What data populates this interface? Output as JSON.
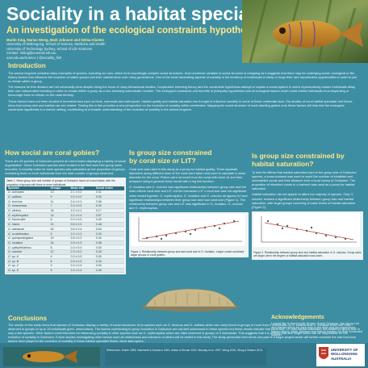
{
  "header": {
    "title": "Sociality in a habitat specialist fish",
    "subtitle": "An investigation of the ecological constraints hypothesis",
    "authors": "Martin King, Marian Wong, Mark Johnson and Selma Klanten",
    "affiliation_1": "University of Wollongong, School of Science, Medicine and Health",
    "affiliation_2": "University of Technology Sydney, School of Life Sciences",
    "contact": "Contact: mking@uowmail.edu.au",
    "links": "uow.edu.au/science | @sociality_fish"
  },
  "introduction": {
    "heading": "Introduction",
    "paragraphs": [
      "The animal kingdom contains many examples of species, including our own, which form surprisingly complex social structures. Such immense variation in social structure is intriguing as it suggests that there may be underlying social, ecological or life-history factors that influence the evolution of stable groups and their maintenance over many generations. One of the most fascinating aspects of sociality is the tendency of individuals to delay or forgo their own reproductive opportunities in order to join or remain within a group.",
      "The reasons for this decision are not universally clear despite being the focus of many behavioural studies. Cooperative breeding theory and the constraints hypothesis attempt to explain a social system in which reproductively mature individuals delay their own independent breeding in order to remain within a group as a non-breeding subordinate member. The ecological constraints and benefits of philopatry hypotheses look at ecological factors which could restrict individuals from dispersing or encourage them to remain on the natal territory.",
      "These factors have not been studied in terrestrial taxa such as birds, mammals and arthropods. Habitat quality and habitat saturation are thought to influence sociality in some of these vertebrate taxa. Our studies of coral habitat specialist reef fishes show that colony size and habitat use are related. Testing this in fish provides a new perspective on the evolution of sociality within vertebrates. Mapping the social structure of coral-dwelling gobies onto these factors will help test the ecological constraints hypothesis in a marine setting, contributing to a broader understanding of the evolution of sociality in the animal kingdom."
    ]
  },
  "groups_section": {
    "heading": "How social are coral gobies?",
    "text": "There are 43 species of Gobiodon present at Lizard Island displaying a variety of social organisation. Some Gobiodon species were located in the field and their group sizes recorded. A sociality index for each species was calculated as the proportion of groups containing three or more individuals from the total number of groups observed.",
    "table_caption": "Table 1. Mean group size and number of groups of Gobiodon found at Lizard Island, with the proportion of groups with three or more individuals.",
    "table_headers": [
      "Species",
      "Groups",
      "Mean ±SE",
      "Social index"
    ],
    "table_rows": [
      [
        "G. acicularis",
        "13",
        "2.1 ± 0.2",
        "0.31"
      ],
      [
        "G. axillaris",
        "9",
        "2.0 ± 0.0",
        "0.00"
      ],
      [
        "G. brochus",
        "11",
        "2.4 ± 0.3",
        "0.36"
      ],
      [
        "G. ceramensis",
        "7",
        "2.0 ± 0.0",
        "0.00"
      ],
      [
        "G. citrinus",
        "18",
        "2.2 ± 0.1",
        "0.17"
      ],
      [
        "G. erythrospilus",
        "14",
        "3.1 ± 0.4",
        "0.57"
      ],
      [
        "G. fuscoruber",
        "6",
        "2.0 ± 0.0",
        "0.00"
      ],
      [
        "G. histrio",
        "21",
        "2.8 ± 0.3",
        "0.48"
      ],
      [
        "G. okinawae",
        "25",
        "3.6 ± 0.4",
        "0.64"
      ],
      [
        "G. oculolineatus",
        "5",
        "2.2 ± 0.2",
        "0.20"
      ],
      [
        "G. quinquestrigatus",
        "19",
        "2.6 ± 0.2",
        "0.42"
      ],
      [
        "G. rivulatus",
        "16",
        "2.5 ± 0.3",
        "0.38"
      ],
      [
        "G. spilophthalmus",
        "8",
        "2.0 ± 0.0",
        "0.00"
      ],
      [
        "G. unicolor",
        "12",
        "2.3 ± 0.2",
        "0.25"
      ],
      [
        "G. sp. A",
        "4",
        "2.0 ± 0.0",
        "0.00"
      ],
      [
        "G. sp. B",
        "6",
        "2.5 ± 0.3",
        "0.33"
      ],
      [
        "G. sp. C",
        "3",
        "2.0 ± 0.0",
        "0.00"
      ],
      [
        "G. sp. D",
        "5",
        "2.4 ± 0.4",
        "0.40"
      ]
    ]
  },
  "coral_size_section": {
    "heading_line1": "Is group size constrained",
    "heading_line2": "by coral size or LtT?",
    "text": "Coral size was used in this study as a proxy for habitat quality. Three separate diameters along different axes of the coral were taken and used to calculate a mean diameter for the coral. Fishes were removed from the coral with clove oil and then analysed using a general linear model with a log link function.",
    "results": "G. rivulatus and G. unicolor had significant relationships between group size and the main effects coral size and LtT, but the interaction LtT x coral size was not significant when tested together. G. erythrospilus, G. rivulatus and G. unicolor all appear to have significant relationships between their group size and host coral size (Figure 1). The relationship between group size and LtT was significant in G. rivulatus, G. unicolor and G. erythrospilus.",
    "figure_caption": "Figure 1. Relationship between group size and coral size in G. rivulatus. Larger corals contained larger groups of coral gobies."
  },
  "saturation_section": {
    "heading_line1": "Is group size constrained by",
    "heading_line2": "habitat saturation?",
    "text": "To test the effects that habitat saturation had on the group size of Gobiodon species, a cross-transect was used to count the number of inhabited and uninhabited corals and their distance from a focal colony of Gobiodon. The proportion of inhabited corals in a transect was used as a proxy for habitat saturation.",
    "text2": "Habitat saturation did not appear to affect the majority of species. Only G. unicolor showed a significant relationship between group size and habitat saturation, with larger groups occurring at lower levels of habitat saturation (Figure 2).",
    "figure_caption": "Figure 2. Relationship between group size and habitat saturation in G. unicolor. Group sizes are larger when the degree of habitat saturation was lower."
  },
  "conclusions": {
    "heading": "Conclusions",
    "text": "The results of this study show that species of Gobiodon display a variety of social structures, from species such as G. brochus and G. axillaris which are rarely found in groups of more than 2 individuals, to G. citrinus and G. rivulatus which are often observed in groups of up to 15 individuals (pers. observation). The factors contributing to group formation in Gobiodon are not well understood in these species but these results indicate that coral size, LtT and habitat saturation are related to group size in only a few species. Other factors could therefore be influencing sociality in other species such as G. erythrospilus which are often observed in groups of 3 individuals. This suggests that it is unlikely that one single factor can be responsible for the evolution of sociality in Gobiodon. Future studies investigating other factors such as relatedness and tolerance of others will be tested in this study. The study presented here forms one part of a larger project which will further examine the role that such factors have played in the evolution of sociality in these habitat specialist fishes. More data opens..."
  },
  "references_text": "References: Emlen 1982; Hatchwell & Komdeur 2000; Kokko & Ekman 2002; Munday et al. 1997; Wong 2010; Wong & Buston 2013.",
  "acknowledgements": {
    "heading": "Acknowledgements",
    "text": "I would like to thank Kylie Brown, Guest Cameron, Kar-Heng Lim and Marian Wong for their help in the field and my supervisors Marian Wong, Mark Johnson and Selma Klanten for their continued support."
  },
  "logos": {
    "logo_1": "UNIVERSITY OF WOLLONGONG AUSTRALIA"
  },
  "colors": {
    "background": "#3e8ea3",
    "heading_yellow": "#ffe88a",
    "panel": "#eef3f4"
  }
}
